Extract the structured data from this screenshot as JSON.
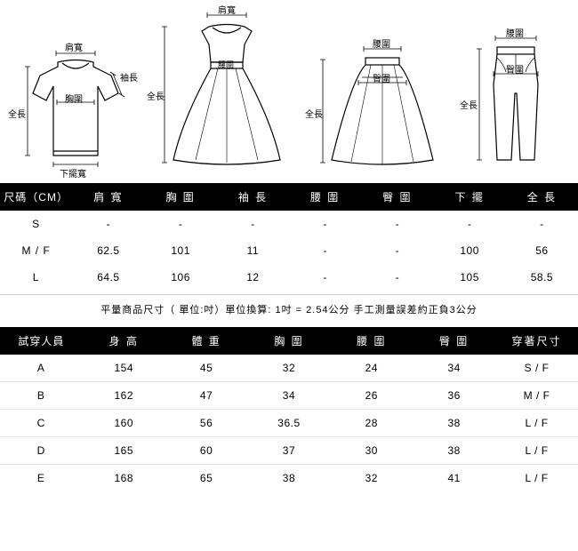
{
  "diagrams": {
    "tshirt": {
      "labels": {
        "shoulder": "肩寬",
        "sleeve": "袖長",
        "chest": "胸圍",
        "length": "全長",
        "hem": "下擺寬"
      }
    },
    "dress": {
      "labels": {
        "shoulder": "肩寬",
        "waist": "腰圍",
        "length": "全長"
      }
    },
    "skirt": {
      "labels": {
        "waist": "腰圍",
        "hip": "臀圍",
        "length": "全長"
      }
    },
    "pants": {
      "labels": {
        "waist": "腰圍",
        "hip": "臀圍",
        "length": "全長"
      }
    },
    "stroke": "#000000",
    "label_fontsize": 10
  },
  "size_table": {
    "columns": [
      "尺碼（CM）",
      "肩 寬",
      "胸 圍",
      "袖 長",
      "腰 圍",
      "臀 圍",
      "下 擺",
      "全 長"
    ],
    "rows": [
      [
        "S",
        "-",
        "-",
        "-",
        "-",
        "-",
        "-",
        "-"
      ],
      [
        "M / F",
        "62.5",
        "101",
        "11",
        "-",
        "-",
        "100",
        "56"
      ],
      [
        "L",
        "64.5",
        "106",
        "12",
        "-",
        "-",
        "105",
        "58.5"
      ]
    ]
  },
  "note": "平量商品尺寸（ 單位:吋）單位換算: 1吋 = 2.54公分  手工測量誤差約正負3公分",
  "fit_table": {
    "columns": [
      "試穿人員",
      "身 高",
      "體 重",
      "胸 圍",
      "腰 圍",
      "臀 圍",
      "穿著尺寸"
    ],
    "rows": [
      [
        "A",
        "154",
        "45",
        "32",
        "24",
        "34",
        "S / F"
      ],
      [
        "B",
        "162",
        "47",
        "34",
        "26",
        "36",
        "M / F"
      ],
      [
        "C",
        "160",
        "56",
        "36.5",
        "28",
        "38",
        "L / F"
      ],
      [
        "D",
        "165",
        "60",
        "37",
        "30",
        "38",
        "L / F"
      ],
      [
        "E",
        "168",
        "65",
        "38",
        "32",
        "41",
        "L / F"
      ]
    ]
  },
  "colors": {
    "header_bg": "#000000",
    "header_fg": "#ffffff",
    "row_border": "#e8e8e8"
  }
}
